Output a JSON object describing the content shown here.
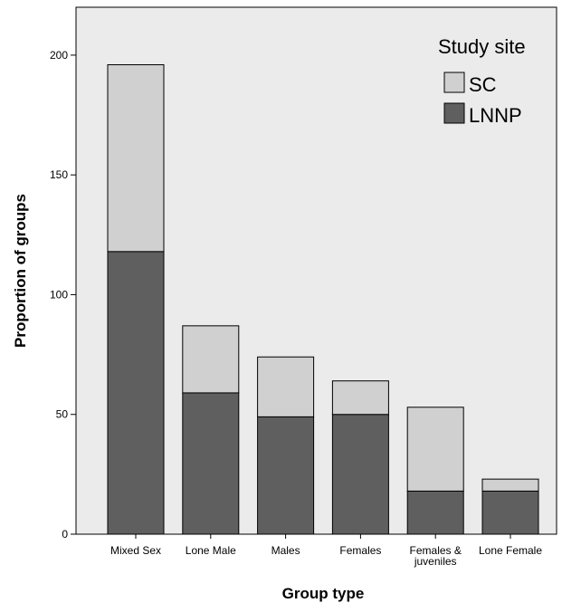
{
  "chart_data": {
    "type": "bar",
    "stacked": true,
    "xlabel": "Group type",
    "ylabel": "Proportion of groups",
    "ylim": [
      0,
      220
    ],
    "yticks": [
      0,
      50,
      100,
      150,
      200
    ],
    "grid": false,
    "categories": [
      "Mixed Sex",
      "Lone Male",
      "Males",
      "Females",
      "Females & juveniles",
      "Lone Female"
    ],
    "category_lines": [
      [
        "Mixed Sex"
      ],
      [
        "Lone Male"
      ],
      [
        "Males"
      ],
      [
        "Females"
      ],
      [
        "Females &",
        "juveniles"
      ],
      [
        "Lone Female"
      ]
    ],
    "series": [
      {
        "name": "LNNP",
        "color": "#5f5f5f",
        "values": [
          118,
          59,
          49,
          50,
          18,
          18
        ]
      },
      {
        "name": "SC",
        "color": "#d0d0d0",
        "values": [
          78,
          28,
          25,
          14,
          35,
          5
        ]
      }
    ],
    "legend": {
      "title": "Study site",
      "position": "top-right",
      "entries": [
        "SC",
        "LNNP"
      ]
    },
    "plot_background": "#ebebeb"
  }
}
